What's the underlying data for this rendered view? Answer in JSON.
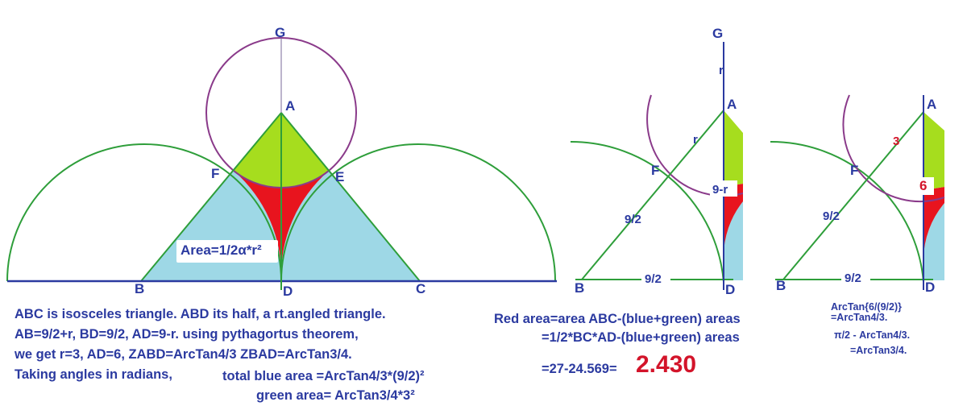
{
  "main_figure": {
    "labels": {
      "G": "G",
      "A": "A",
      "F": "F",
      "E": "E",
      "B": "B",
      "D": "D",
      "C": "C"
    },
    "area_label": "Area=1/2α*r²"
  },
  "figure2": {
    "labels": {
      "G": "G",
      "r_top": "r",
      "A": "A",
      "r_side": "r",
      "F": "F",
      "nine_minus_r": "9-r",
      "nine_half_side": "9/2",
      "nine_half_base": "9/2",
      "B": "B",
      "D": "D"
    }
  },
  "figure3": {
    "labels": {
      "A": "A",
      "three": "3",
      "F": "F",
      "six": "6",
      "nine_half_side": "9/2",
      "nine_half_base": "9/2",
      "B": "B",
      "D": "D"
    }
  },
  "text_notes": {
    "line1": "ABC is isosceles triangle. ABD its half, a rt.angled triangle.",
    "line2": "AB=9/2+r,   BD=9/2,   AD=9-r. using pythagortus theorem,",
    "line3": "we get  r=3,  AD=6,  ZABD=ArcTan4/3   ZBAD=ArcTan3/4.",
    "line4": "Taking angles in radians,",
    "line4b": "total blue area =ArcTan4/3*(9/2)²",
    "line5": "green area=  ArcTan3/4*3²",
    "red1": "Red area=area ABC-(blue+green) areas",
    "red2": "=1/2*BC*AD-(blue+green) areas",
    "red3": "=27-24.569=",
    "result": "2.430",
    "side1": "ArcTan{6/(9/2)}",
    "side2": "=ArcTan4/3.",
    "side3": "π/2  -  ArcTan4/3.",
    "side4": "=ArcTan3/4."
  },
  "colors": {
    "blue_fill": "#9ed8e6",
    "green_fill": "#a6dd1e",
    "red_fill": "#e8141e",
    "line_green": "#2e9e3a",
    "line_blue": "#2b3aa0",
    "circle_purple": "#8a3a8a"
  }
}
